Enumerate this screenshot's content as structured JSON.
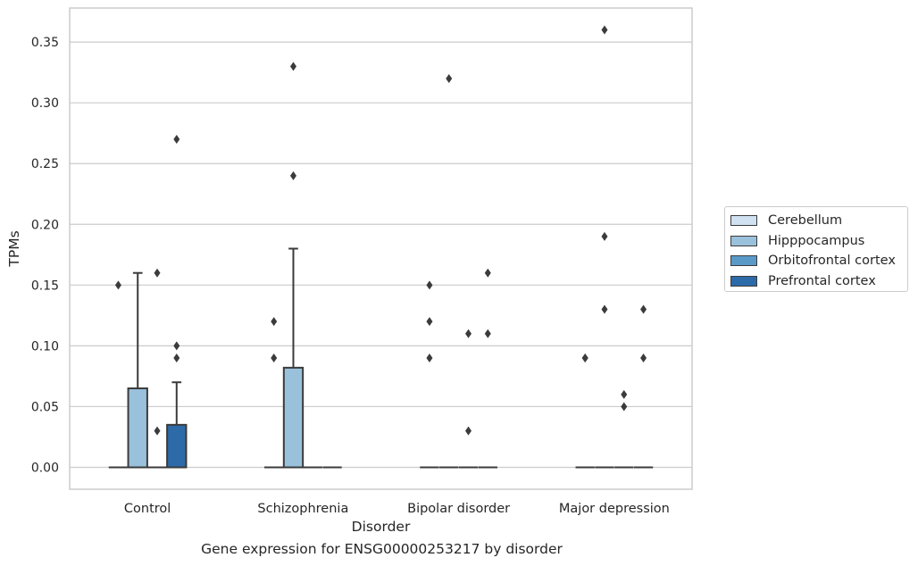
{
  "chart_data": {
    "type": "box",
    "caption": "Gene expression for ENSG00000253217 by disorder",
    "xlabel": "Disorder",
    "ylabel": "TPMs",
    "ylim": [
      -0.018,
      0.378
    ],
    "yticks": [
      "0.00",
      "0.05",
      "0.10",
      "0.15",
      "0.20",
      "0.25",
      "0.30",
      "0.35"
    ],
    "categories": [
      "Control",
      "Schizophrenia",
      "Bipolar disorder",
      "Major depression"
    ],
    "grid": "horizontal",
    "legend_position": "right",
    "series": [
      {
        "name": "Cerebellum",
        "color": "#d0e1f2",
        "boxes": [
          {
            "q1": 0,
            "median": 0,
            "q3": 0,
            "whisker_low": 0,
            "whisker_high": 0,
            "outliers": [
              0.15
            ]
          },
          {
            "q1": 0,
            "median": 0,
            "q3": 0,
            "whisker_low": 0,
            "whisker_high": 0,
            "outliers": [
              0.09,
              0.12
            ]
          },
          {
            "q1": 0,
            "median": 0,
            "q3": 0,
            "whisker_low": 0,
            "whisker_high": 0,
            "outliers": [
              0.09,
              0.12,
              0.15
            ]
          },
          {
            "q1": 0,
            "median": 0,
            "q3": 0,
            "whisker_low": 0,
            "whisker_high": 0,
            "outliers": [
              0.09,
              0.09
            ]
          }
        ]
      },
      {
        "name": "Hipppocampus",
        "color": "#9ac1dc",
        "boxes": [
          {
            "q1": 0,
            "median": 0,
            "q3": 0.065,
            "whisker_low": 0,
            "whisker_high": 0.16,
            "outliers": []
          },
          {
            "q1": 0,
            "median": 0,
            "q3": 0.082,
            "whisker_low": 0,
            "whisker_high": 0.18,
            "outliers": [
              0.24,
              0.33
            ]
          },
          {
            "q1": 0,
            "median": 0,
            "q3": 0,
            "whisker_low": 0,
            "whisker_high": 0,
            "outliers": [
              0.32
            ]
          },
          {
            "q1": 0,
            "median": 0,
            "q3": 0,
            "whisker_low": 0,
            "whisker_high": 0,
            "outliers": [
              0.13,
              0.19,
              0.36
            ]
          }
        ]
      },
      {
        "name": "Orbitofrontal cortex",
        "color": "#5a9ac9",
        "boxes": [
          {
            "q1": 0,
            "median": 0,
            "q3": 0,
            "whisker_low": 0,
            "whisker_high": 0,
            "outliers": [
              0.03,
              0.16
            ]
          },
          {
            "q1": 0,
            "median": 0,
            "q3": 0,
            "whisker_low": 0,
            "whisker_high": 0,
            "outliers": []
          },
          {
            "q1": 0,
            "median": 0,
            "q3": 0,
            "whisker_low": 0,
            "whisker_high": 0,
            "outliers": [
              0.03,
              0.11
            ]
          },
          {
            "q1": 0,
            "median": 0,
            "q3": 0,
            "whisker_low": 0,
            "whisker_high": 0,
            "outliers": [
              0.05,
              0.06
            ]
          }
        ]
      },
      {
        "name": "Prefrontal cortex",
        "color": "#2d6aa8",
        "boxes": [
          {
            "q1": 0,
            "median": 0,
            "q3": 0.035,
            "whisker_low": 0,
            "whisker_high": 0.07,
            "outliers": [
              0.09,
              0.1,
              0.27
            ]
          },
          {
            "q1": 0,
            "median": 0,
            "q3": 0,
            "whisker_low": 0,
            "whisker_high": 0,
            "outliers": []
          },
          {
            "q1": 0,
            "median": 0,
            "q3": 0,
            "whisker_low": 0,
            "whisker_high": 0,
            "outliers": [
              0.11,
              0.16
            ]
          },
          {
            "q1": 0,
            "median": 0,
            "q3": 0,
            "whisker_low": 0,
            "whisker_high": 0,
            "outliers": [
              0.09,
              0.13
            ]
          }
        ]
      }
    ]
  }
}
